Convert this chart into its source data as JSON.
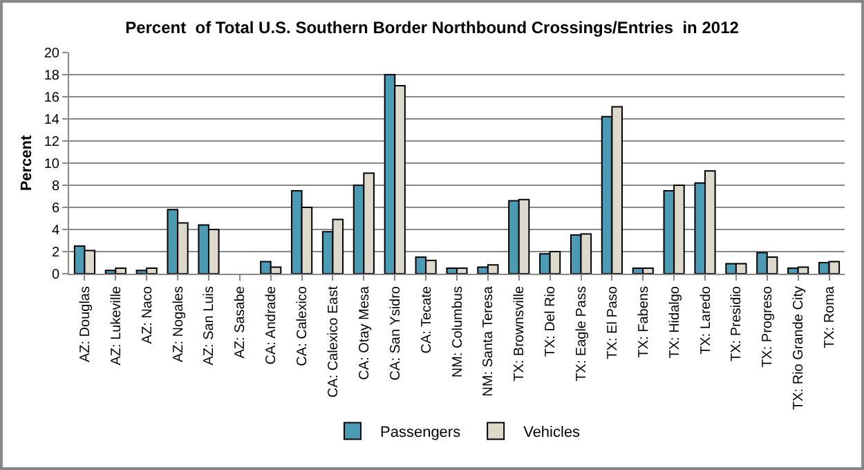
{
  "chart_data": {
    "type": "bar",
    "title": "Percent  of Total U.S. Southern Border Northbound Crossings/Entries  in 2012",
    "ylabel": "Percent",
    "categories": [
      "AZ: Douglas",
      "AZ: Lukeville",
      "AZ: Naco",
      "AZ: Nogales",
      "AZ: San Luis",
      "AZ: Sasabe",
      "CA: Andrade",
      "CA: Calexico",
      "CA: Calexico East",
      "CA: Otay Mesa",
      "CA: San Ysidro",
      "CA: Tecate",
      "NM: Columbus",
      "NM: Santa Teresa",
      "TX: Brownsville",
      "TX: Del Rio",
      "TX: Eagle Pass",
      "TX: El Paso",
      "TX: Fabens",
      "TX: Hidalgo",
      "TX: Laredo",
      "TX: Presidio",
      "TX: Progreso",
      "TX: Rio Grande City",
      "TX: Roma"
    ],
    "series": [
      {
        "name": "Passengers",
        "color": "#4a9cb4",
        "values": [
          2.5,
          0.3,
          0.3,
          5.8,
          4.4,
          0,
          1.1,
          7.5,
          3.8,
          8.0,
          18.0,
          1.5,
          0.5,
          0.6,
          6.6,
          1.8,
          3.5,
          14.2,
          0.5,
          7.5,
          8.2,
          0.9,
          1.9,
          0.5,
          1.0
        ]
      },
      {
        "name": "Vehicles",
        "color": "#dddacb",
        "values": [
          2.1,
          0.5,
          0.5,
          4.6,
          4.0,
          0,
          0.6,
          6.0,
          4.9,
          9.1,
          17.0,
          1.2,
          0.5,
          0.8,
          6.7,
          2.0,
          3.6,
          15.1,
          0.5,
          8.0,
          9.3,
          0.9,
          1.5,
          0.6,
          1.1
        ]
      }
    ],
    "ylim": [
      0,
      20
    ],
    "yticks": [
      0,
      2,
      4,
      6,
      8,
      10,
      12,
      14,
      16,
      18,
      20
    ],
    "grid": "y",
    "legend": "bottom"
  }
}
